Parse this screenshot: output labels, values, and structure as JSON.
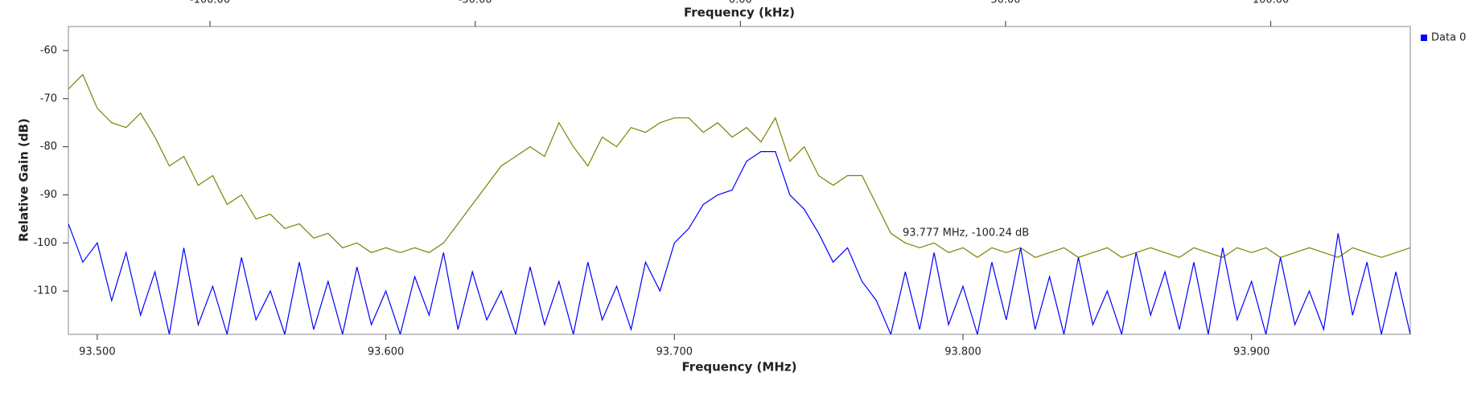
{
  "chart_data": {
    "type": "line",
    "xlabel": "Frequency (MHz)",
    "ylabel": "Relative Gain (dB)",
    "x2label": "Frequency (kHz)",
    "annotation": "93.777 MHz, -100.24 dB",
    "annotation_color": "#a52a2a",
    "legend": "top-right",
    "xlim": [
      93.49,
      93.955
    ],
    "ylim": [
      -119,
      -55
    ],
    "x2lim": [
      -126.7,
      126.3
    ],
    "xticks": [
      {
        "value": 93.5,
        "label": "93.500"
      },
      {
        "value": 93.6,
        "label": "93.600"
      },
      {
        "value": 93.7,
        "label": "93.700"
      },
      {
        "value": 93.8,
        "label": "93.800"
      },
      {
        "value": 93.9,
        "label": "93.900"
      }
    ],
    "x2ticks": [
      {
        "value": -100,
        "label": "-100.00"
      },
      {
        "value": -50,
        "label": "-50.00"
      },
      {
        "value": 0,
        "label": "0.00"
      },
      {
        "value": 50,
        "label": "50.00"
      },
      {
        "value": 100,
        "label": "100.00"
      }
    ],
    "yticks": [
      -60,
      -70,
      -80,
      -90,
      -100,
      -110
    ],
    "x": [
      93.49,
      93.495,
      93.5,
      93.505,
      93.51,
      93.515,
      93.52,
      93.525,
      93.53,
      93.535,
      93.54,
      93.545,
      93.55,
      93.555,
      93.56,
      93.565,
      93.57,
      93.575,
      93.58,
      93.585,
      93.59,
      93.595,
      93.6,
      93.605,
      93.61,
      93.615,
      93.62,
      93.625,
      93.63,
      93.635,
      93.64,
      93.645,
      93.65,
      93.655,
      93.66,
      93.665,
      93.67,
      93.675,
      93.68,
      93.685,
      93.69,
      93.695,
      93.7,
      93.705,
      93.71,
      93.715,
      93.72,
      93.725,
      93.73,
      93.735,
      93.74,
      93.745,
      93.75,
      93.755,
      93.76,
      93.765,
      93.77,
      93.775,
      93.78,
      93.785,
      93.79,
      93.795,
      93.8,
      93.805,
      93.81,
      93.815,
      93.82,
      93.825,
      93.83,
      93.835,
      93.84,
      93.845,
      93.85,
      93.855,
      93.86,
      93.865,
      93.87,
      93.875,
      93.88,
      93.885,
      93.89,
      93.895,
      93.9,
      93.905,
      93.91,
      93.915,
      93.92,
      93.925,
      93.93,
      93.935,
      93.94,
      93.945,
      93.95,
      93.955
    ],
    "series": [
      {
        "color": "#808000",
        "values": [
          -68,
          -65,
          -72,
          -75,
          -76,
          -73,
          -78,
          -84,
          -82,
          -88,
          -86,
          -92,
          -90,
          -95,
          -94,
          -97,
          -96,
          -99,
          -98,
          -101,
          -100,
          -102,
          -101,
          -102,
          -101,
          -102,
          -100,
          -96,
          -92,
          -88,
          -84,
          -82,
          -80,
          -82,
          -75,
          -80,
          -84,
          -78,
          -80,
          -76,
          -77,
          -75,
          -74,
          -74,
          -77,
          -75,
          -78,
          -76,
          -79,
          -74,
          -83,
          -80,
          -86,
          -88,
          -86,
          -86,
          -92,
          -98,
          -100,
          -101,
          -100,
          -102,
          -101,
          -103,
          -101,
          -102,
          -101,
          -103,
          -102,
          -101,
          -103,
          -102,
          -101,
          -103,
          -102,
          -101,
          -102,
          -103,
          -101,
          -102,
          -103,
          -101,
          -102,
          -101,
          -103,
          -102,
          -101,
          -102,
          -103,
          -101,
          -102,
          -103,
          -102,
          -101
        ]
      },
      {
        "name": "Data 0",
        "color": "#0000ff",
        "values": [
          -96,
          -104,
          -100,
          -112,
          -102,
          -115,
          -106,
          -119,
          -101,
          -117,
          -109,
          -119,
          -103,
          -116,
          -110,
          -119,
          -104,
          -118,
          -108,
          -119,
          -105,
          -117,
          -110,
          -119,
          -107,
          -115,
          -102,
          -118,
          -106,
          -116,
          -110,
          -119,
          -105,
          -117,
          -108,
          -119,
          -104,
          -116,
          -109,
          -118,
          -104,
          -110,
          -100,
          -97,
          -92,
          -90,
          -89,
          -83,
          -81,
          -81,
          -90,
          -93,
          -98,
          -104,
          -101,
          -108,
          -112,
          -119,
          -106,
          -118,
          -102,
          -117,
          -109,
          -119,
          -104,
          -116,
          -101,
          -118,
          -107,
          -119,
          -103,
          -117,
          -110,
          -119,
          -102,
          -115,
          -106,
          -118,
          -104,
          -119,
          -101,
          -116,
          -108,
          -119,
          -103,
          -117,
          -110,
          -118,
          -98,
          -115,
          -104,
          -119,
          -106,
          -119
        ]
      }
    ]
  }
}
